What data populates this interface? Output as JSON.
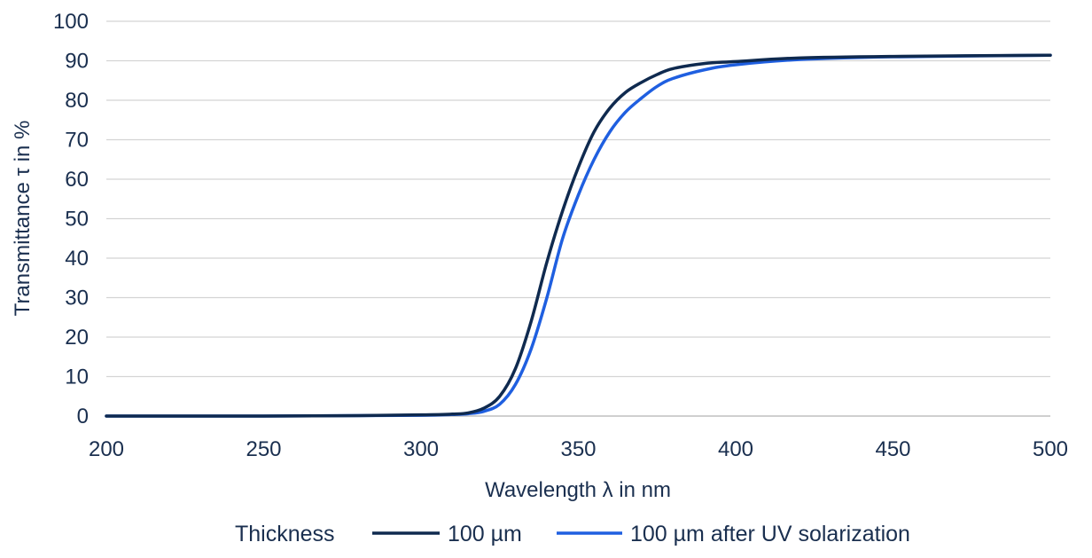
{
  "chart_data": {
    "type": "line",
    "xlabel": "Wavelength λ in nm",
    "ylabel": "Transmittance τ in %",
    "xlim": [
      200,
      500
    ],
    "ylim": [
      0,
      100
    ],
    "xticks": [
      200,
      250,
      300,
      350,
      400,
      450,
      500
    ],
    "yticks": [
      0,
      10,
      20,
      30,
      40,
      50,
      60,
      70,
      80,
      90,
      100
    ],
    "grid": "horizontal",
    "legend": {
      "title": "Thickness",
      "position": "bottom"
    },
    "series": [
      {
        "name": "100 µm",
        "color": "#0f2a4f",
        "x": [
          200,
          250,
          280,
          300,
          310,
          315,
          320,
          325,
          330,
          335,
          340,
          345,
          350,
          355,
          360,
          365,
          370,
          375,
          380,
          390,
          400,
          420,
          450,
          500
        ],
        "y": [
          0,
          0,
          0.1,
          0.3,
          0.5,
          0.8,
          2,
          5,
          12,
          24,
          39,
          52,
          63,
          72,
          78,
          82,
          84.5,
          86.5,
          88,
          89.3,
          89.8,
          90.7,
          91.1,
          91.4
        ]
      },
      {
        "name": "100 µm after UV solarization",
        "color": "#1f5fe0",
        "x": [
          200,
          250,
          280,
          300,
          310,
          315,
          320,
          325,
          330,
          335,
          340,
          345,
          350,
          355,
          360,
          365,
          370,
          375,
          380,
          390,
          400,
          420,
          450,
          500
        ],
        "y": [
          0,
          0,
          0.1,
          0.2,
          0.4,
          0.6,
          1.2,
          3,
          8,
          17,
          30,
          45,
          56,
          65,
          72,
          77,
          80.5,
          83.5,
          85.5,
          87.7,
          89,
          90.3,
          91,
          91.4
        ]
      }
    ]
  }
}
